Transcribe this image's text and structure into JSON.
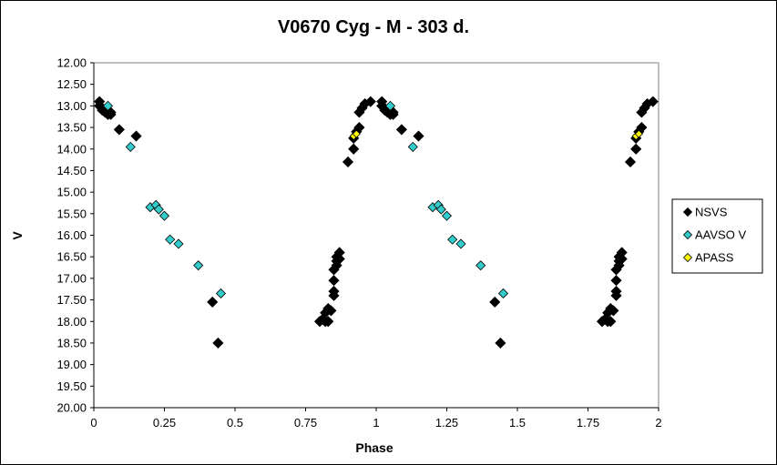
{
  "chart_data": {
    "type": "scatter",
    "title": "V0670 Cyg - M - 303 d.",
    "xlabel": "Phase",
    "ylabel": "V",
    "xlim": [
      0,
      2
    ],
    "ylim": [
      12,
      20
    ],
    "y_inverted": true,
    "xticks": [
      "0",
      "0.25",
      "0.5",
      "0.75",
      "1",
      "1.25",
      "1.5",
      "1.75",
      "2"
    ],
    "xtick_values": [
      0,
      0.25,
      0.5,
      0.75,
      1,
      1.25,
      1.5,
      1.75,
      2
    ],
    "yticks": [
      "12.00",
      "12.50",
      "13.00",
      "13.50",
      "14.00",
      "14.50",
      "15.00",
      "15.50",
      "16.00",
      "16.50",
      "17.00",
      "17.50",
      "18.00",
      "18.50",
      "19.00",
      "19.50",
      "20.00"
    ],
    "ytick_values": [
      12,
      12.5,
      13,
      13.5,
      14,
      14.5,
      15,
      15.5,
      16,
      16.5,
      17,
      17.5,
      18,
      18.5,
      19,
      19.5,
      20
    ],
    "grid": false,
    "legend_position": "right",
    "series": [
      {
        "name": "NSVS",
        "color": "#000000",
        "marker": "diamond",
        "points": [
          [
            0.02,
            12.9
          ],
          [
            0.02,
            13.0
          ],
          [
            0.03,
            13.05
          ],
          [
            0.03,
            13.1
          ],
          [
            0.04,
            13.1
          ],
          [
            0.04,
            13.15
          ],
          [
            0.05,
            13.2
          ],
          [
            0.06,
            13.15
          ],
          [
            0.06,
            13.2
          ],
          [
            0.09,
            13.55
          ],
          [
            0.15,
            13.7
          ],
          [
            0.42,
            17.55
          ],
          [
            0.44,
            18.5
          ],
          [
            0.8,
            18.0
          ],
          [
            0.81,
            17.95
          ],
          [
            0.82,
            17.8
          ],
          [
            0.82,
            18.0
          ],
          [
            0.83,
            17.7
          ],
          [
            0.83,
            18.0
          ],
          [
            0.84,
            17.75
          ],
          [
            0.85,
            17.4
          ],
          [
            0.85,
            17.3
          ],
          [
            0.85,
            17.05
          ],
          [
            0.85,
            16.8
          ],
          [
            0.86,
            16.7
          ],
          [
            0.86,
            16.6
          ],
          [
            0.86,
            16.5
          ],
          [
            0.87,
            16.55
          ],
          [
            0.87,
            16.4
          ],
          [
            0.9,
            14.3
          ],
          [
            0.92,
            14.0
          ],
          [
            0.92,
            13.75
          ],
          [
            0.93,
            13.6
          ],
          [
            0.94,
            13.5
          ],
          [
            0.94,
            13.15
          ],
          [
            0.95,
            13.05
          ],
          [
            0.96,
            12.95
          ],
          [
            0.98,
            12.9
          ]
        ]
      },
      {
        "name": "AAVSO V",
        "color": "#33CCCC",
        "marker": "diamond",
        "points": [
          [
            0.05,
            13.0
          ],
          [
            0.13,
            13.95
          ],
          [
            0.2,
            15.35
          ],
          [
            0.22,
            15.3
          ],
          [
            0.23,
            15.4
          ],
          [
            0.25,
            15.55
          ],
          [
            0.27,
            16.1
          ],
          [
            0.3,
            16.2
          ],
          [
            0.37,
            16.7
          ],
          [
            0.45,
            17.35
          ]
        ]
      },
      {
        "name": "APASS",
        "color": "#FFFF00",
        "marker": "diamond",
        "points": [
          [
            0.92,
            13.7
          ],
          [
            0.93,
            13.65
          ]
        ]
      }
    ]
  }
}
